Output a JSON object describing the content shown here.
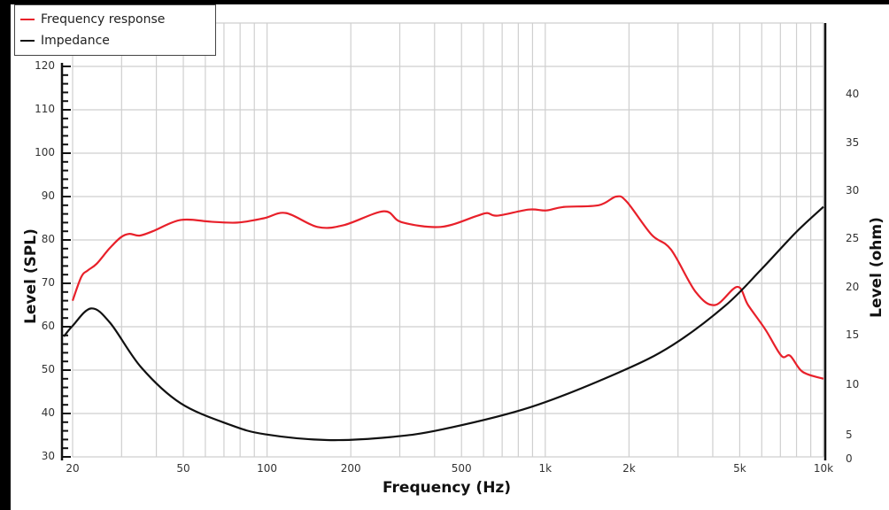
{
  "legend": {
    "items": [
      {
        "label": "Frequency response",
        "color": "#e8202a"
      },
      {
        "label": "Impedance",
        "color": "#111111"
      }
    ]
  },
  "axes": {
    "x_title": "Frequency (Hz)",
    "y_left_title": "Level (SPL)",
    "y_right_title": "Level (ohm)",
    "x_ticks": [
      "20",
      "50",
      "100",
      "200",
      "500",
      "1k",
      "2k",
      "5k",
      "10k"
    ],
    "y_left_ticks": [
      "120",
      "110",
      "100",
      "90",
      "80",
      "70",
      "60",
      "50",
      "40",
      "30"
    ],
    "y_right_ticks": [
      "40",
      "35",
      "30",
      "25",
      "20",
      "15",
      "10",
      "5",
      "0"
    ]
  },
  "chart_data": {
    "type": "line",
    "title": "",
    "xlabel": "Frequency (Hz)",
    "ylabel": "Level (SPL)",
    "y2label": "Level (ohm)",
    "xscale": "log",
    "xlim": [
      20,
      10000
    ],
    "ylim": [
      30,
      120
    ],
    "y2lim": [
      0,
      45
    ],
    "grid": true,
    "legend_position": "top-left",
    "x_ticks": [
      20,
      50,
      100,
      200,
      500,
      1000,
      2000,
      5000,
      10000
    ],
    "y_ticks": [
      30,
      40,
      50,
      60,
      70,
      80,
      90,
      100,
      110,
      120
    ],
    "y2_ticks": [
      0,
      5,
      10,
      15,
      20,
      25,
      30,
      35,
      40
    ],
    "series": [
      {
        "name": "Frequency response",
        "axis": "left",
        "color": "#e8202a",
        "x": [
          20,
          21.5,
          22.7,
          24.4,
          27.1,
          29.8,
          32.0,
          34.8,
          38.8,
          48.9,
          63.0,
          78.3,
          97.4,
          116.9,
          151.7,
          188.6,
          262.8,
          304.4,
          420.7,
          565.3,
          617.7,
          674.3,
          871.6,
          1008,
          1163,
          1556,
          1799,
          1964,
          2411,
          2830,
          3474,
          4078,
          4904,
          5357,
          6190,
          7059,
          7594,
          8413,
          10000
        ],
        "values": [
          66,
          71.5,
          73,
          74.5,
          78,
          80.6,
          81.4,
          81,
          82,
          84.6,
          84.2,
          84,
          85,
          86.2,
          83,
          83.4,
          86.6,
          84.1,
          83,
          85.5,
          86.2,
          85.6,
          87,
          86.8,
          87.6,
          88,
          90,
          88.8,
          81.2,
          77.8,
          68,
          65,
          69.2,
          65,
          59.3,
          53.3,
          53.3,
          49.6,
          48
        ]
      },
      {
        "name": "Impedance",
        "axis": "right",
        "color": "#111111",
        "x": [
          18.6,
          20,
          23.3,
          27.3,
          35.3,
          48.9,
          73.2,
          98.2,
          164.5,
          275.5,
          426.3,
          885.7,
          1844,
          2863,
          4442,
          5961,
          7988,
          10000
        ],
        "values": [
          15,
          16.1,
          17.9,
          16.4,
          11.8,
          8.1,
          5.9,
          4.9,
          4.3,
          4.6,
          5.4,
          7.7,
          11.3,
          14.1,
          18.2,
          21.9,
          25.8,
          28.4
        ]
      }
    ]
  }
}
